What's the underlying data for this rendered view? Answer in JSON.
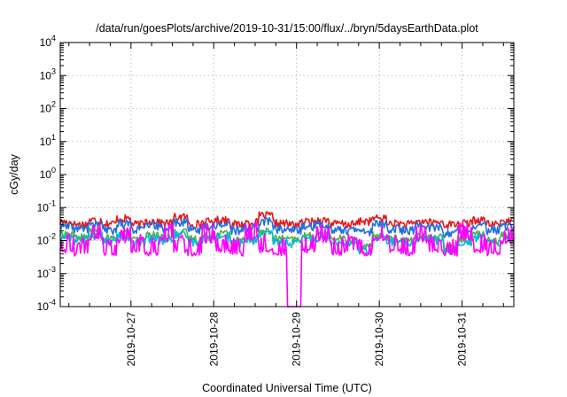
{
  "chart_data": {
    "type": "line",
    "title": "/data/run/goesPlots/archive/2019-10-31/15:00/flux/../bryn/5daysEarthData.plot",
    "xlabel": "Coordinated Universal Time (UTC)",
    "ylabel": "cGy/day",
    "yscale": "log",
    "ylim": [
      0.0001,
      10000
    ],
    "xlim": [
      "2019-10-26T03:30",
      "2019-10-31T15:00"
    ],
    "grid": true,
    "x_ticks": [
      "2019-10-27",
      "2019-10-28",
      "2019-10-29",
      "2019-10-30",
      "2019-10-31"
    ],
    "y_ticks": [
      {
        "base": "10",
        "exp": "-4"
      },
      {
        "base": "10",
        "exp": "-3"
      },
      {
        "base": "10",
        "exp": "-2"
      },
      {
        "base": "10",
        "exp": "-1"
      },
      {
        "base": "10",
        "exp": "0"
      },
      {
        "base": "10",
        "exp": "1"
      },
      {
        "base": "10",
        "exp": "2"
      },
      {
        "base": "10",
        "exp": "3"
      },
      {
        "base": "10",
        "exp": "4"
      }
    ],
    "series": [
      {
        "color": "#e41a1c",
        "values": [
          0.035,
          0.03,
          0.04,
          0.032,
          0.045,
          0.03,
          0.038,
          0.033,
          0.05,
          0.031,
          0.036,
          0.042,
          0.03,
          0.034,
          0.055,
          0.032,
          0.03,
          0.036,
          0.04,
          0.031,
          0.03,
          0.038,
          0.045,
          0.032,
          0.03,
          0.036,
          0.034,
          0.03,
          0.032,
          0.04,
          0.03,
          0.038
        ]
      },
      {
        "color": "#4daf4a",
        "values": [
          0.015,
          0.012,
          0.018,
          0.011,
          0.016,
          0.01,
          0.014,
          0.012,
          0.017,
          0.011,
          0.013,
          0.016,
          0.01,
          0.012,
          0.018,
          0.011,
          0.01,
          0.013,
          0.015,
          0.011,
          0.01,
          0.006,
          0.014,
          0.011,
          0.01,
          0.013,
          0.012,
          0.006,
          0.011,
          0.015,
          0.01,
          0.014
        ]
      },
      {
        "color": "#00bcd4",
        "values": [
          0.012,
          0.01,
          0.014,
          0.009,
          0.013,
          0.008,
          0.011,
          0.01,
          0.014,
          0.009,
          0.011,
          0.013,
          0.008,
          0.01,
          0.015,
          0.009,
          0.008,
          0.011,
          0.012,
          0.009,
          0.008,
          0.005,
          0.011,
          0.009,
          0.008,
          0.011,
          0.01,
          0.005,
          0.009,
          0.012,
          0.008,
          0.011
        ]
      },
      {
        "color": "#1f6fe0",
        "values": [
          0.025,
          0.022,
          0.03,
          0.02,
          0.032,
          0.021,
          0.027,
          0.023,
          0.035,
          0.021,
          0.026,
          0.03,
          0.02,
          0.024,
          0.038,
          0.022,
          0.02,
          0.026,
          0.029,
          0.021,
          0.02,
          0.018,
          0.031,
          0.022,
          0.02,
          0.026,
          0.024,
          0.016,
          0.022,
          0.028,
          0.02,
          0.026
        ]
      },
      {
        "color": "#ff00ff",
        "values": [
          0.005,
          0.004,
          0.012,
          0.004,
          0.01,
          0.005,
          0.004,
          0.011,
          0.005,
          0.004,
          0.01,
          0.005,
          0.004,
          0.012,
          0.005,
          0.004,
          0.0001,
          0.005,
          0.01,
          0.004,
          0.005,
          0.004,
          0.011,
          0.005,
          0.004,
          0.01,
          0.005,
          0.004,
          0.011,
          0.005,
          0.004,
          0.009
        ]
      }
    ]
  }
}
